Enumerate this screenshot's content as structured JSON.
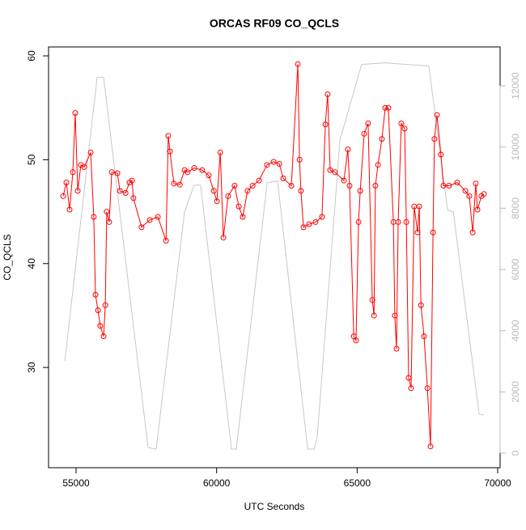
{
  "chart_data": {
    "type": "line",
    "title": "ORCAS RF09 CO_QCLS",
    "x_label": "UTC Seconds",
    "y_label": "CO_QCLS",
    "xlim": [
      54021,
      70086
    ],
    "ylim": [
      20.35,
      60.86
    ],
    "y2lim": [
      -476,
      13270
    ],
    "xticks": [
      55000,
      60000,
      65000,
      70000
    ],
    "yticks": [
      30,
      40,
      50,
      60
    ],
    "y2ticks": [
      0,
      2000,
      4000,
      6000,
      8000,
      10000,
      12000
    ],
    "y2_tick_color": "#bbbbbb",
    "grid": false,
    "series": [
      {
        "color": "#ff0000",
        "marker": "circle",
        "x": [
          54540,
          54655,
          54770,
          54885,
          54970,
          55060,
          55170,
          55290,
          55520,
          55630,
          55690,
          55780,
          55860,
          55980,
          56040,
          56090,
          56180,
          56270,
          56470,
          56560,
          56760,
          56900,
          56990,
          57040,
          57330,
          57620,
          57910,
          58200,
          58280,
          58340,
          58480,
          58690,
          58860,
          58970,
          59200,
          59490,
          59720,
          59900,
          60010,
          60130,
          60240,
          60410,
          60640,
          60790,
          60930,
          61100,
          61280,
          61510,
          61790,
          62030,
          62230,
          62370,
          62660,
          62890,
          62950,
          63000,
          63090,
          63290,
          63520,
          63750,
          63870,
          63950,
          64040,
          64210,
          64530,
          64670,
          64730,
          64880,
          64960,
          65050,
          65110,
          65250,
          65390,
          65540,
          65600,
          65650,
          65740,
          65880,
          66000,
          66110,
          66290,
          66340,
          66400,
          66460,
          66570,
          66690,
          66750,
          66830,
          66920,
          67030,
          67150,
          67210,
          67270,
          67380,
          67500,
          67610,
          67700,
          67750,
          67840,
          67980,
          68070,
          68270,
          68560,
          68850,
          68990,
          69110,
          69220,
          69280,
          69420,
          69510
        ],
        "values": [
          46.5,
          47.8,
          45.2,
          48.8,
          54.5,
          47.0,
          49.5,
          49.3,
          50.7,
          44.5,
          37.0,
          35.5,
          34.0,
          33.0,
          36.0,
          45.0,
          44.0,
          48.8,
          48.7,
          47.0,
          46.8,
          47.8,
          48.0,
          46.3,
          43.5,
          44.2,
          44.5,
          42.2,
          52.3,
          50.8,
          47.7,
          47.6,
          49.0,
          48.8,
          49.2,
          49.0,
          48.5,
          47.0,
          46.0,
          50.7,
          42.5,
          46.5,
          47.5,
          45.5,
          44.5,
          47.0,
          47.5,
          48.0,
          49.5,
          49.8,
          49.6,
          48.2,
          47.5,
          59.2,
          50.0,
          47.0,
          43.5,
          43.8,
          44.0,
          44.5,
          53.4,
          56.3,
          49.0,
          48.8,
          48.0,
          51.0,
          47.5,
          33.0,
          32.6,
          44.0,
          47.0,
          52.5,
          53.5,
          36.5,
          35.0,
          47.5,
          49.5,
          52.0,
          55.0,
          55.0,
          44.0,
          35.0,
          31.8,
          44.0,
          53.5,
          53.0,
          44.0,
          29.0,
          28.0,
          45.5,
          43.0,
          45.5,
          36.0,
          33.0,
          28.0,
          22.4,
          43.0,
          52.0,
          54.3,
          50.5,
          47.5,
          47.5,
          47.8,
          47.0,
          46.5,
          43.0,
          47.7,
          45.2,
          46.5,
          46.7
        ]
      },
      {
        "color": "#c8c8c8",
        "axis": "y2",
        "x": [
          54600,
          55750,
          55980,
          57560,
          57850,
          58860,
          59200,
          59430,
          60530,
          60700,
          61800,
          62170,
          63240,
          63470,
          63580,
          64390,
          65160,
          66000,
          67550,
          68220,
          68420,
          69340,
          69510
        ],
        "values": [
          3016,
          12275,
          12275,
          185,
          132,
          7883,
          8757,
          8757,
          132,
          132,
          8836,
          8889,
          132,
          132,
          529,
          10238,
          12698,
          12751,
          12646,
          7937,
          7883,
          1270,
          1243
        ]
      }
    ]
  }
}
